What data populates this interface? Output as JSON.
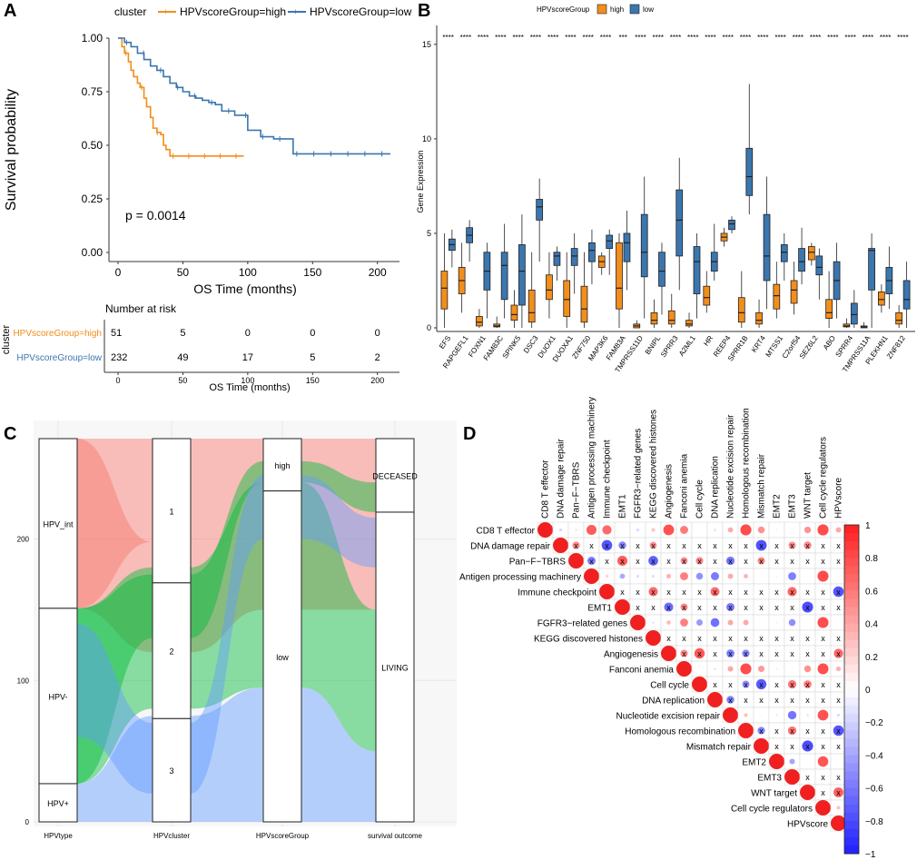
{
  "colors": {
    "high": "#f28e1c",
    "low": "#3b76af",
    "red": "#f8766d",
    "green": "#00ba38",
    "blue": "#619cff"
  },
  "panels": {
    "A": "A",
    "B": "B",
    "C": "C",
    "D": "D"
  },
  "chart_data": [
    {
      "panel": "A",
      "type": "line",
      "title": "",
      "legend_title": "cluster",
      "series": [
        {
          "name": "HPVscoreGroup=high",
          "x": [
            0,
            3,
            5,
            8,
            10,
            12,
            15,
            17,
            20,
            22,
            25,
            27,
            30,
            33,
            35,
            37,
            40,
            45,
            50,
            60,
            70,
            80,
            97
          ],
          "values": [
            1.0,
            0.96,
            0.93,
            0.89,
            0.85,
            0.82,
            0.79,
            0.77,
            0.72,
            0.68,
            0.63,
            0.58,
            0.56,
            0.55,
            0.5,
            0.48,
            0.45,
            0.45,
            0.45,
            0.45,
            0.45,
            0.45,
            0.45
          ]
        },
        {
          "name": "HPVscoreGroup=low",
          "x": [
            0,
            5,
            10,
            15,
            20,
            25,
            30,
            35,
            40,
            45,
            50,
            55,
            60,
            65,
            70,
            75,
            80,
            90,
            100,
            110,
            120,
            130,
            135,
            150,
            170,
            190,
            210
          ],
          "values": [
            1.0,
            0.98,
            0.96,
            0.93,
            0.9,
            0.87,
            0.85,
            0.82,
            0.79,
            0.77,
            0.75,
            0.73,
            0.72,
            0.71,
            0.7,
            0.69,
            0.66,
            0.64,
            0.57,
            0.54,
            0.53,
            0.53,
            0.46,
            0.46,
            0.46,
            0.46,
            0.46
          ]
        }
      ],
      "xlabel": "OS Time (months)",
      "ylabel": "Survival probability",
      "xlim": [
        0,
        210
      ],
      "ylim": [
        0,
        1
      ],
      "xticks": [
        "0",
        "50",
        "100",
        "150",
        "200"
      ],
      "yticks": [
        "0.00",
        "0.25",
        "0.50",
        "0.75",
        "1.00"
      ],
      "annotation": "p = 0.0014",
      "risk_table": {
        "title": "Number at risk",
        "ylabel": "cluster",
        "xlabel": "OS Time (months)",
        "rows": [
          {
            "name": "HPVscoreGroup=high",
            "counts": [
              "51",
              "5",
              "0",
              "0",
              "0"
            ]
          },
          {
            "name": "HPVscoreGroup=low",
            "counts": [
              "232",
              "49",
              "17",
              "5",
              "2"
            ]
          }
        ],
        "xticks": [
          "0",
          "50",
          "100",
          "150",
          "200"
        ]
      }
    },
    {
      "panel": "B",
      "type": "box",
      "legend_title": "HPVscoreGroup",
      "legend_items": [
        "high",
        "low"
      ],
      "ylabel": "Gene Expression",
      "ylim": [
        0,
        16
      ],
      "yticks": [
        "0",
        "5",
        "10",
        "15"
      ],
      "categories": [
        "EFS",
        "RAPGEFL1",
        "FOXN1",
        "FAM83C",
        "SPINK5",
        "DSC3",
        "DUOX1",
        "DUOXA1",
        "ZNF750",
        "MAP3K6",
        "FAM83A",
        "TMPRSS11D",
        "BNIPL",
        "SPRR3",
        "A2ML1",
        "HR",
        "REEP4",
        "SPRR1B",
        "KRT4",
        "MTSS1",
        "C2orf54",
        "SEZ6L2",
        "ABO",
        "SPRR4",
        "TMPRSS11A",
        "PLEKHN1",
        "ZNF812"
      ],
      "significance": [
        "****",
        "****",
        "****",
        "****",
        "****",
        "****",
        "****",
        "****",
        "****",
        "****",
        "***",
        "****",
        "****",
        "****",
        "****",
        "****",
        "****",
        "****",
        "****",
        "****",
        "****",
        "****",
        "****",
        "****",
        "****",
        "****",
        "****"
      ],
      "high": [
        [
          0,
          1,
          2.1,
          3,
          5
        ],
        [
          0.8,
          1.8,
          2.5,
          3.2,
          4.5
        ],
        [
          0,
          0.1,
          0.3,
          0.6,
          1
        ],
        [
          0,
          0.05,
          0.1,
          0.2,
          0.6
        ],
        [
          0,
          0.4,
          0.7,
          1.2,
          2
        ],
        [
          0,
          0.3,
          0.8,
          2,
          4
        ],
        [
          0.5,
          1.5,
          2,
          2.8,
          4
        ],
        [
          0,
          0.6,
          1.5,
          2.5,
          4
        ],
        [
          0,
          0.3,
          1,
          2.2,
          4
        ],
        [
          2.8,
          3.2,
          3.5,
          3.8,
          4
        ],
        [
          0,
          1,
          2.1,
          4.5,
          5
        ],
        [
          0,
          0,
          0.1,
          0.2,
          0.4
        ],
        [
          0,
          0.2,
          0.4,
          0.8,
          1.5
        ],
        [
          0,
          0.2,
          0.4,
          0.9,
          1.8
        ],
        [
          0,
          0.1,
          0.2,
          0.4,
          0.8
        ],
        [
          0.8,
          1.2,
          1.6,
          2.2,
          3
        ],
        [
          4.3,
          4.6,
          4.8,
          5,
          5.3
        ],
        [
          0,
          0.3,
          0.8,
          1.6,
          3
        ],
        [
          0,
          0.2,
          0.4,
          0.8,
          1.5
        ],
        [
          0.5,
          1,
          1.7,
          2.3,
          3.5
        ],
        [
          0.7,
          1.3,
          2,
          2.5,
          3.5
        ],
        [
          3.3,
          3.6,
          4,
          4.3,
          4.5
        ],
        [
          0,
          0.5,
          0.8,
          1.5,
          3
        ],
        [
          0,
          0.05,
          0.1,
          0.2,
          0.5
        ],
        [
          0,
          0,
          0.05,
          0.1,
          0.3
        ],
        [
          0.8,
          1.2,
          1.5,
          1.9,
          2.3
        ],
        [
          0,
          0.2,
          0.4,
          0.8,
          1.2
        ]
      ],
      "low": [
        [
          3.2,
          4.1,
          4.4,
          4.7,
          5.2
        ],
        [
          3.5,
          4.5,
          4.9,
          5.3,
          5.7
        ],
        [
          0.5,
          2,
          3,
          4,
          4.5
        ],
        [
          0.5,
          1.5,
          3.3,
          4,
          5.5
        ],
        [
          0,
          1.2,
          3,
          4.4,
          6
        ],
        [
          3.5,
          5.7,
          6.4,
          6.8,
          7.9
        ],
        [
          2.5,
          3.3,
          3.8,
          4,
          4.3
        ],
        [
          1.8,
          3.3,
          3.8,
          4.2,
          5
        ],
        [
          2.3,
          3.5,
          4.1,
          4.5,
          5.2
        ],
        [
          2.8,
          4.2,
          4.6,
          4.9,
          5.2
        ],
        [
          2,
          3.5,
          4.5,
          5,
          6.2
        ],
        [
          0.5,
          2.7,
          4,
          6,
          8
        ],
        [
          0.7,
          2.2,
          3,
          4,
          4.5
        ],
        [
          2,
          3.8,
          5.7,
          7.3,
          9
        ],
        [
          0.5,
          1.8,
          3.5,
          4.3,
          5
        ],
        [
          2.5,
          3,
          3.5,
          4,
          5.5
        ],
        [
          5,
          5.2,
          5.5,
          5.7,
          5.9
        ],
        [
          6,
          7,
          8,
          9.5,
          12.9
        ],
        [
          1,
          2.5,
          3.8,
          6,
          8
        ],
        [
          2.5,
          3.5,
          4,
          4.4,
          5
        ],
        [
          2.3,
          3,
          3.5,
          4.2,
          5.3
        ],
        [
          1.5,
          2.8,
          3.2,
          3.8,
          4.2
        ],
        [
          0.5,
          1.5,
          2.5,
          3.5,
          4.5
        ],
        [
          0,
          0.2,
          0.7,
          1.3,
          2
        ],
        [
          0,
          2,
          4.1,
          4.2,
          5
        ],
        [
          1,
          1.8,
          2.5,
          3.2,
          4.3
        ],
        [
          0,
          1,
          1.5,
          2.5,
          3.5
        ]
      ]
    },
    {
      "panel": "C",
      "type": "alluvial",
      "axes": [
        "HPVtype",
        "HPVcluster",
        "HPVscoreGroup",
        "survival outcome"
      ],
      "yticks": [
        "0",
        "100",
        "200"
      ],
      "strata": {
        "HPVtype": [
          {
            "name": "HPV_int",
            "value": 120
          },
          {
            "name": "HPV-",
            "value": 124
          },
          {
            "name": "HPV+",
            "value": 27
          }
        ],
        "HPVcluster": [
          {
            "name": "1",
            "value": 102
          },
          {
            "name": "2",
            "value": 96
          },
          {
            "name": "3",
            "value": 73
          }
        ],
        "HPVscoreGroup": [
          {
            "name": "high",
            "value": 37
          },
          {
            "name": "low",
            "value": 234
          }
        ],
        "survival outcome": [
          {
            "name": "DECEASED",
            "value": 52
          },
          {
            "name": "LIVING",
            "value": 219
          }
        ]
      }
    },
    {
      "panel": "D",
      "type": "heatmap",
      "labels": [
        "CD8 T effector",
        "DNA damage repair",
        "Pan−F−TBRS",
        "Antigen processing machinery",
        "Immune checkpoint",
        "EMT1",
        "FGFR3−related genes",
        "KEGG discovered histones",
        "Angiogenesis",
        "Fanconi anemia",
        "Cell cycle",
        "DNA replication",
        "Nucleotide excision repair",
        "Homologous recombination",
        "Mismatch repair",
        "EMT2",
        "EMT3",
        "WNT target",
        "Cell cycle regulators",
        "HPVscore"
      ],
      "colorbar_ticks": [
        "1",
        "0.8",
        "0.6",
        "0.4",
        "0.2",
        "0",
        "−0.2",
        "−0.4",
        "−0.6",
        "−0.8",
        "−1"
      ],
      "mark": "x"
    }
  ]
}
